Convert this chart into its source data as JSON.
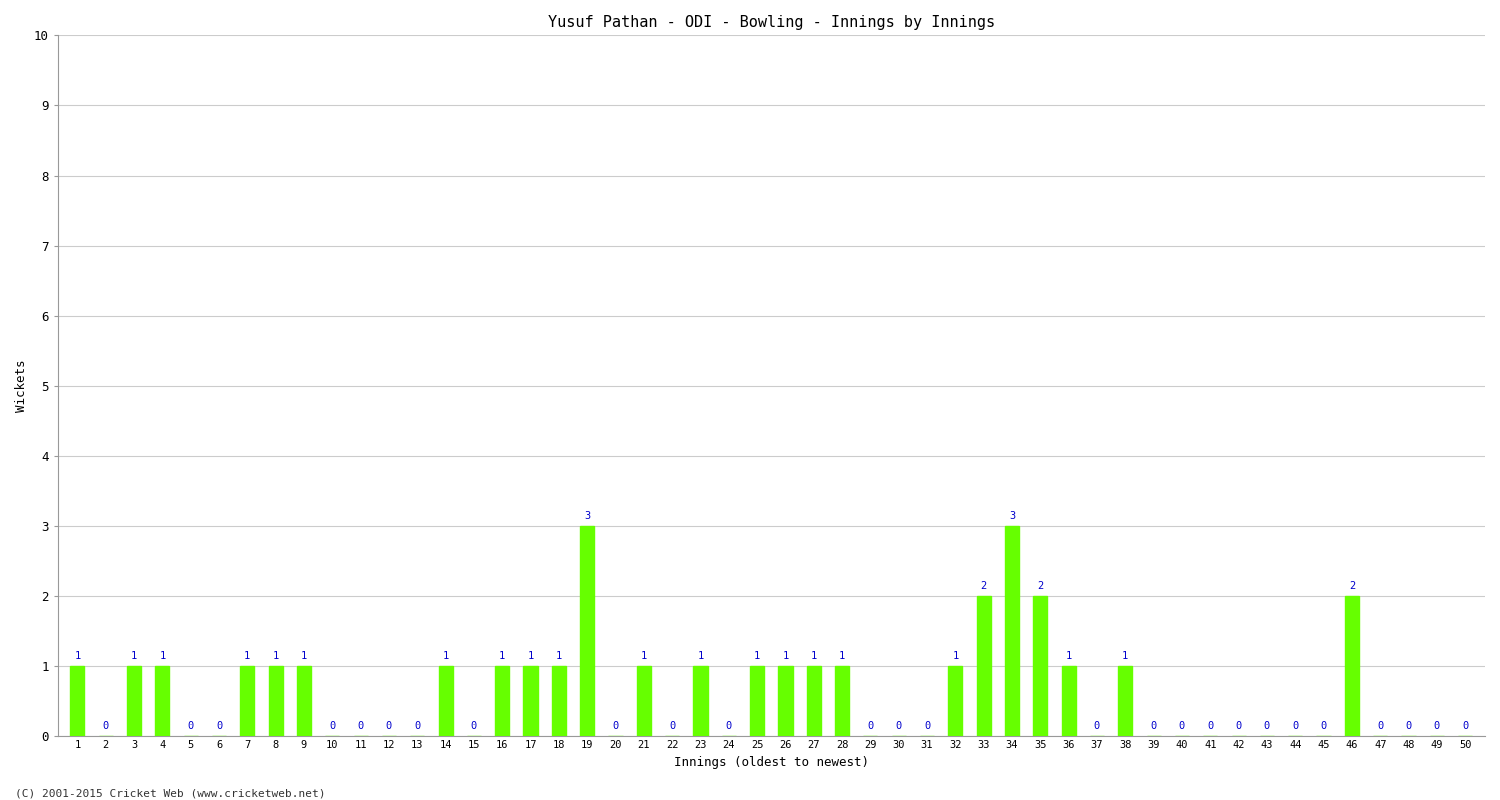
{
  "title": "Yusuf Pathan - ODI - Bowling - Innings by Innings",
  "xlabel": "Innings (oldest to newest)",
  "ylabel": "Wickets",
  "background_color": "#ffffff",
  "bar_color": "#66ff00",
  "label_color_nonzero": "#0000cc",
  "label_color_zero": "#0000cc",
  "ylim": [
    0,
    10
  ],
  "yticks": [
    0,
    1,
    2,
    3,
    4,
    5,
    6,
    7,
    8,
    9,
    10
  ],
  "footer": "(C) 2001-2015 Cricket Web (www.cricketweb.net)",
  "innings": [
    1,
    2,
    3,
    4,
    5,
    6,
    7,
    8,
    9,
    10,
    11,
    12,
    13,
    14,
    15,
    16,
    17,
    18,
    19,
    20,
    21,
    22,
    23,
    24,
    25,
    26,
    27,
    28,
    29,
    30,
    31,
    32,
    33,
    34,
    35,
    36,
    37,
    38,
    39,
    40,
    41,
    42,
    43,
    44,
    45,
    46,
    47,
    48,
    49,
    50
  ],
  "wickets": [
    1,
    0,
    1,
    1,
    0,
    0,
    1,
    1,
    1,
    0,
    0,
    0,
    0,
    1,
    0,
    1,
    1,
    1,
    3,
    0,
    1,
    0,
    1,
    0,
    1,
    1,
    1,
    1,
    0,
    0,
    0,
    1,
    2,
    3,
    2,
    1,
    0,
    1,
    0,
    0,
    0,
    0,
    0,
    0,
    0,
    2,
    0,
    0,
    0,
    0
  ]
}
